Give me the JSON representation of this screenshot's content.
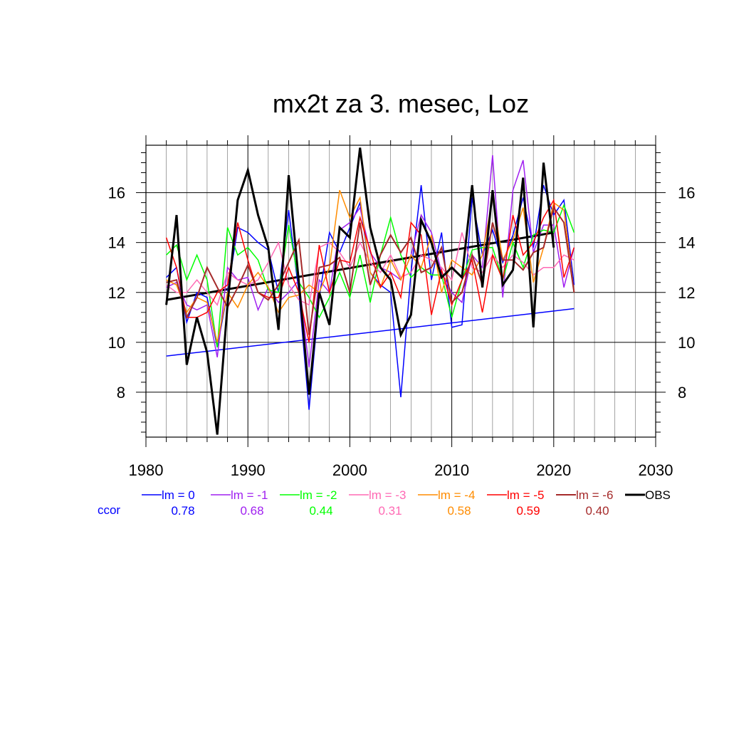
{
  "chart_data": {
    "type": "line",
    "title": "mx2t za 3. mesec, Loz",
    "xlabel": "",
    "ylabel": "",
    "xlim": [
      1980,
      2030
    ],
    "ylim": [
      6.2,
      17.9
    ],
    "xticks": [
      1980,
      1990,
      2000,
      2010,
      2020,
      2030
    ],
    "xtick_labels": [
      "1980",
      "1990",
      "2000",
      "2010",
      "2020",
      "2030"
    ],
    "yticks": [
      8,
      10,
      12,
      14,
      16
    ],
    "ytick_labels": [
      "8",
      "10",
      "12",
      "14",
      "16"
    ],
    "grid": true,
    "legend_position": "bottom",
    "ccor_label": "ccor",
    "x": [
      1982,
      1983,
      1984,
      1985,
      1986,
      1987,
      1988,
      1989,
      1990,
      1991,
      1992,
      1993,
      1994,
      1995,
      1996,
      1997,
      1998,
      1999,
      2000,
      2001,
      2002,
      2003,
      2004,
      2005,
      2006,
      2007,
      2008,
      2009,
      2010,
      2011,
      2012,
      2013,
      2014,
      2015,
      2016,
      2017,
      2018,
      2019,
      2020,
      2021,
      2022
    ],
    "series": [
      {
        "name": "lm = 0",
        "color": "#0000ff",
        "width": 1.5,
        "ccor": "0.78",
        "values": [
          12.6,
          13.0,
          10.8,
          12.0,
          11.8,
          9.8,
          12.0,
          14.6,
          14.4,
          14.0,
          13.7,
          12.0,
          15.3,
          12.0,
          7.3,
          11.8,
          14.4,
          13.6,
          14.6,
          15.6,
          12.8,
          12.3,
          12.0,
          7.8,
          12.8,
          16.3,
          12.5,
          14.4,
          10.6,
          10.7,
          15.8,
          13.5,
          14.5,
          13.2,
          14.3,
          15.8,
          13.8,
          16.3,
          15.1,
          15.7,
          12.3
        ]
      },
      {
        "name": "lm = -1",
        "color": "#a020f0",
        "width": 1.5,
        "ccor": "0.68",
        "values": [
          12.2,
          12.4,
          11.5,
          11.3,
          11.5,
          9.4,
          13.0,
          12.5,
          12.6,
          11.3,
          12.2,
          11.6,
          12.0,
          12.5,
          9.0,
          12.5,
          12.0,
          14.5,
          14.8,
          15.4,
          13.6,
          13.0,
          12.8,
          12.5,
          13.5,
          15.1,
          14.4,
          12.8,
          12.0,
          11.6,
          13.5,
          13.0,
          17.5,
          11.8,
          16.1,
          17.3,
          13.6,
          14.7,
          14.7,
          12.2,
          13.8
        ]
      },
      {
        "name": "lm = -2",
        "color": "#00ff00",
        "width": 1.5,
        "ccor": "0.44",
        "values": [
          13.5,
          13.9,
          12.5,
          13.5,
          12.5,
          9.8,
          14.6,
          13.5,
          13.8,
          13.3,
          12.1,
          12.0,
          14.7,
          12.4,
          11.8,
          11.0,
          11.8,
          12.8,
          11.8,
          13.5,
          11.6,
          13.5,
          15.0,
          13.5,
          12.6,
          13.0,
          12.7,
          12.7,
          11.0,
          12.5,
          13.7,
          13.8,
          13.8,
          12.5,
          14.0,
          13.0,
          14.3,
          14.5,
          14.4,
          15.5,
          14.4
        ]
      },
      {
        "name": "lm = -3",
        "color": "#ff69b4",
        "width": 1.5,
        "ccor": "0.31",
        "values": [
          12.3,
          12.0,
          12.0,
          12.5,
          12.0,
          11.5,
          12.8,
          12.5,
          12.3,
          12.5,
          13.2,
          14.0,
          12.3,
          11.7,
          11.5,
          13.8,
          14.0,
          13.6,
          13.0,
          14.0,
          13.2,
          12.8,
          13.5,
          12.6,
          12.8,
          13.5,
          13.3,
          13.0,
          12.5,
          14.4,
          13.0,
          12.8,
          13.5,
          13.0,
          13.5,
          13.2,
          12.7,
          13.0,
          13.0,
          13.5,
          13.3
        ]
      },
      {
        "name": "lm = -4",
        "color": "#ff8c00",
        "width": 1.5,
        "ccor": "0.58",
        "values": [
          12.5,
          12.3,
          11.2,
          11.8,
          11.6,
          10.0,
          12.0,
          11.4,
          12.3,
          12.8,
          12.2,
          11.2,
          11.8,
          11.9,
          12.3,
          12.0,
          13.0,
          16.1,
          15.0,
          15.8,
          12.8,
          12.2,
          13.3,
          12.5,
          13.5,
          13.0,
          14.3,
          12.0,
          13.3,
          13.0,
          12.7,
          13.5,
          15.8,
          13.3,
          14.1,
          15.4,
          12.4,
          13.8,
          15.6,
          15.3,
          12.0
        ]
      },
      {
        "name": "lm = -5",
        "color": "#ff0000",
        "width": 1.5,
        "ccor": "0.59",
        "values": [
          14.2,
          13.0,
          11.0,
          11.0,
          11.2,
          12.0,
          12.3,
          14.8,
          13.3,
          12.0,
          11.8,
          11.8,
          13.0,
          12.0,
          10.0,
          13.9,
          12.0,
          13.3,
          13.2,
          15.0,
          13.7,
          12.2,
          12.8,
          11.8,
          14.8,
          14.3,
          11.1,
          12.9,
          11.5,
          12.5,
          13.3,
          11.2,
          13.5,
          12.5,
          15.1,
          13.5,
          14.0,
          15.0,
          15.7,
          12.6,
          13.8
        ]
      },
      {
        "name": "lm = -6",
        "color": "#a52a2a",
        "width": 2.0,
        "ccor": "0.40",
        "values": [
          12.4,
          12.5,
          11.0,
          11.8,
          13.0,
          12.2,
          11.4,
          12.2,
          13.1,
          12.0,
          11.7,
          12.3,
          13.2,
          14.1,
          10.3,
          13.0,
          13.1,
          13.4,
          12.0,
          14.8,
          12.3,
          13.5,
          14.3,
          13.6,
          14.2,
          12.8,
          13.0,
          13.8,
          11.6,
          12.0,
          13.5,
          12.3,
          14.8,
          13.3,
          13.3,
          12.9,
          13.6,
          13.8,
          15.4,
          14.8,
          12.0
        ]
      },
      {
        "name": "OBS",
        "color": "#000000",
        "width": 3.0,
        "ccor": "",
        "values": [
          11.5,
          15.1,
          9.1,
          11.0,
          9.6,
          6.3,
          11.5,
          15.7,
          16.9,
          15.1,
          13.8,
          10.5,
          16.7,
          12.4,
          7.9,
          12.0,
          10.7,
          14.6,
          14.2,
          17.8,
          14.6,
          13.0,
          12.5,
          10.3,
          11.1,
          14.9,
          14.0,
          12.6,
          13.0,
          12.6,
          16.3,
          12.2,
          16.1,
          12.3,
          12.9,
          16.6,
          10.6,
          17.2,
          13.8,
          null,
          null
        ]
      }
    ],
    "trend_lines": [
      {
        "name": "lm = 0 trend",
        "color": "#0000ff",
        "width": 1.5,
        "x": [
          1982,
          2022
        ],
        "y": [
          9.45,
          11.35
        ]
      },
      {
        "name": "OBS trend",
        "color": "#000000",
        "width": 3.0,
        "x": [
          1982,
          2020
        ],
        "y": [
          11.7,
          14.4
        ]
      }
    ]
  }
}
